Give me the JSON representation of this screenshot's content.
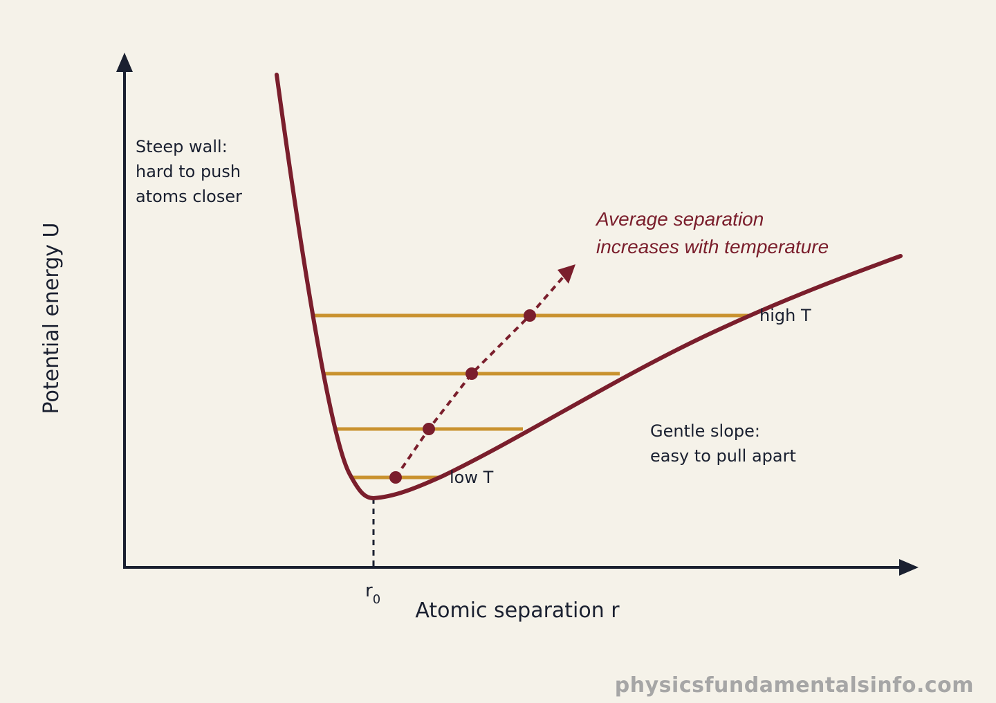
{
  "axes": {
    "x_label": "Atomic separation r",
    "y_label": "Potential energy U",
    "r0_base": "r",
    "r0_sub": "0"
  },
  "annotations": {
    "steep_wall": [
      "Steep wall:",
      "hard to push",
      "atoms closer"
    ],
    "gentle_slope": [
      "Gentle slope:",
      "easy to pull apart"
    ],
    "trend": [
      "Average separation",
      "increases with temperature"
    ],
    "low_t": "low T",
    "high_t": "high T"
  },
  "watermark": "physicsfundamentalsinfo.com",
  "colors": {
    "background": "#f5f2e9",
    "curve": "#7a1e2c",
    "energy_levels": "#c9922e",
    "axes": "#1a2030",
    "watermark": "#a6a6a6"
  }
}
